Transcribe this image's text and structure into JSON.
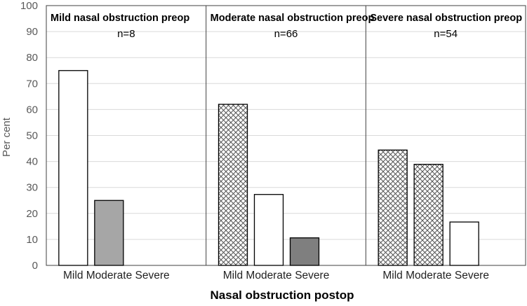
{
  "chart_data": {
    "type": "bar",
    "xlabel": "Nasal obstruction postop",
    "ylabel": "Per cent",
    "ylim": [
      0,
      100
    ],
    "yticks": [
      0,
      10,
      20,
      30,
      40,
      50,
      60,
      70,
      80,
      90,
      100
    ],
    "categories": [
      "Mild",
      "Moderate",
      "Severe"
    ],
    "colors": {
      "gridline": "#d9d9d9",
      "divider": "#404040",
      "bar_stroke": "#000000",
      "white_fill": "#ffffff",
      "light_gray_fill": "#a6a6a6",
      "dark_gray_fill": "#7f7f7f",
      "crosshatch_stroke": "#555555"
    },
    "panels": [
      {
        "title": "Mild nasal obstruction preop",
        "n_label": "n=8",
        "values": [
          75,
          25,
          0
        ],
        "fills": [
          "white",
          "light-gray",
          "none"
        ]
      },
      {
        "title": "Moderate nasal obstruction preop",
        "n_label": "n=66",
        "values": [
          62,
          27.3,
          10.6
        ],
        "fills": [
          "crosshatch",
          "white",
          "dark-gray"
        ]
      },
      {
        "title": "Severe nasal obstruction preop",
        "n_label": "n=54",
        "values": [
          44.4,
          38.9,
          16.7
        ],
        "fills": [
          "crosshatch",
          "crosshatch",
          "white"
        ]
      }
    ]
  }
}
